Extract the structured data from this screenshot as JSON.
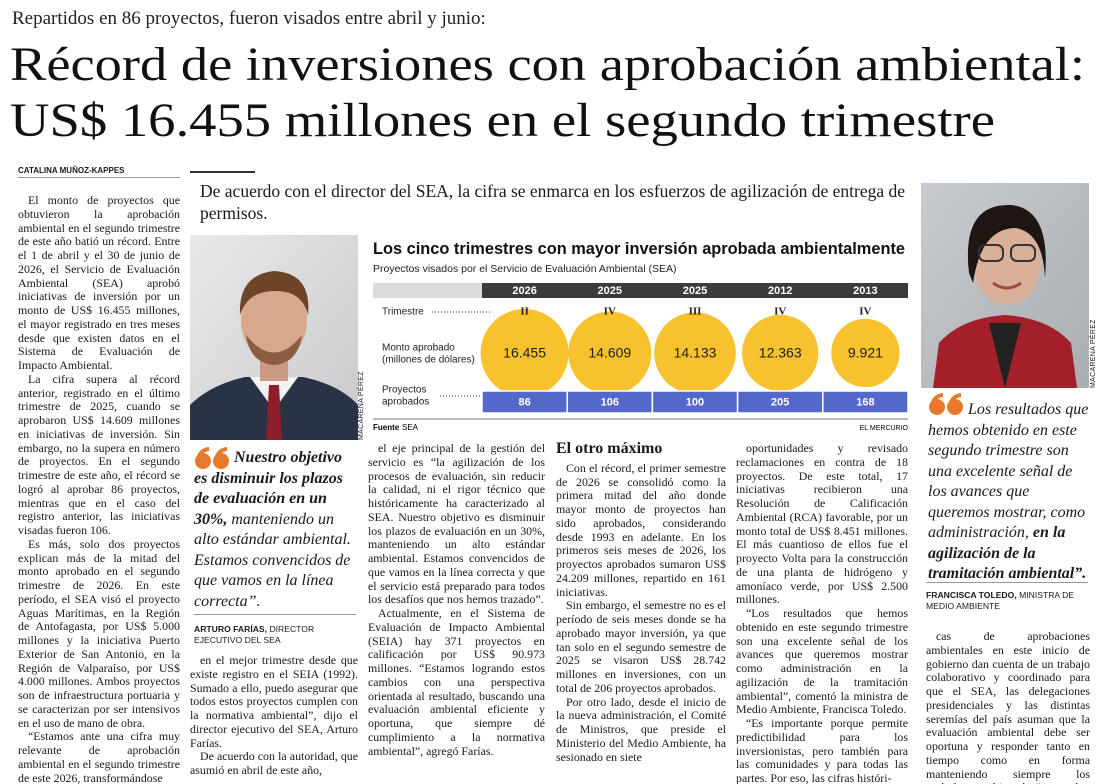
{
  "header": {
    "kicker": "Repartidos en 86 proyectos, fueron visados entre abril y junio:",
    "title_lines": [
      "Récord de inversiones con aprobación ambiental:",
      "US$ 16.455 millones en el segundo trimestre"
    ]
  },
  "byline": "CATALINA MUÑOZ-KAPPES",
  "deck": "De acuerdo con el director del SEA, la cifra se enmarca en los esfuerzos de agilización de entrega de permisos.",
  "photo_credits": [
    "MACARENA PÉREZ",
    "MACARENA PÉREZ"
  ],
  "columns": [
    {
      "paragraphs": [
        "El monto de proyectos que obtuvieron la aprobación ambiental en el segundo trimestre de este año batió un récord. Entre el 1 de abril y el 30 de junio de 2026, el Servicio de Evaluación Ambiental (SEA) aprobó iniciativas de inversión por un monto de US$ 16.455 millones, el mayor registrado en tres meses desde que existen datos en el Sistema de Evaluación de Impacto Ambiental.",
        "La cifra supera al récord anterior, registrado en el último trimestre de 2025, cuando se aprobaron US$ 14.609 millones en iniciativas de inversión. Sin embargo, no la supera en número de proyectos. En el segundo trimestre de este año, el récord se logró al aprobar 86 proyectos, mientras que en el caso del registro anterior, las iniciativas visadas fueron 106.",
        "Es más, solo dos proyectos explican más de la mitad del monto aprobado en el segundo trimestre de 2026. En este período, el SEA visó el proyecto Aguas Marítimas, en la Región de Antofagasta, por US$ 5.000 millones y la iniciativa Puerto Exterior de San Antonio, en la Región de Valparaíso, por US$ 4.000 millones. Ambos proyectos son de infraestructura portuaria y se caracterizan por ser intensivos en el uso de mano de obra.",
        "“Estamos ante una cifra muy relevante de aprobación ambiental en el segundo trimestre de este 2026, transformándose"
      ]
    },
    {
      "paragraphs": [
        "en el mejor trimestre desde que existe registro en el SEIA (1992). Sumado a ello, puedo asegurar que todos estos proyectos cumplen con la normativa ambiental”, dijo el director ejecutivo del SEA, Arturo Farías.",
        "De acuerdo con la autoridad, que asumió en abril de este año,"
      ]
    },
    {
      "paragraphs": [
        "el eje principal de la gestión del servicio es “la agilización de los procesos de evaluación, sin reducir la calidad, ni el rigor técnico que históricamente ha caracterizado al SEA. Nuestro objetivo es disminuir los plazos de evaluación en un 30%, manteniendo un alto estándar ambiental. Estamos convencidos de que vamos en la línea correcta y que el servicio está preparado para todos los desafíos que nos hemos trazado”.",
        "Actualmente, en el Sistema de Evaluación de Impacto Ambiental (SEIA) hay 371 proyectos en calificación por US$ 90.973 millones. “Estamos logrando estos cambios con una perspectiva orientada al resultado, buscando una evaluación ambiental eficiente y oportuna, que siempre dé cumplimiento a la normativa ambiental”, agregó Farías."
      ]
    },
    {
      "heading": "El otro máximo",
      "paragraphs": [
        "Con el récord, el primer semestre de 2026 se consolidó como la primera mitad del año donde mayor monto de proyectos han sido aprobados, considerando desde 1993 en adelante. En los primeros seis meses de 2026, los proyectos aprobados sumaron US$ 24.209 millones, repartido en 161 iniciativas.",
        "Sin embargo, el semestre no es el período de seis meses donde se ha aprobado mayor inversión, ya que tan solo en el segundo semestre de 2025 se visaron US$ 28.742 millones en inversiones, con un total de 206 proyectos aprobados.",
        "Por otro lado, desde el inicio de la nueva administración, el Comité de Ministros, que preside el Ministerio del Medio Ambiente, ha sesionado en siete"
      ]
    },
    {
      "paragraphs": [
        "oportunidades y revisado reclamaciones en contra de 18 proyectos. De este total, 17 iniciativas recibieron una Resolución de Calificación Ambiental (RCA) favorable, por un monto total de US$ 8.451 millones. El más cuantioso de ellos fue el proyecto Volta para la construcción de una planta de hidrógeno y amoníaco verde, por US$ 2.500 millones.",
        "“Los resultados que hemos obtenido en este segundo trimestre son una excelente señal de los avances que queremos mostrar como administración en la agilización de la tramitación ambiental”, comentó la ministra de Medio Ambiente, Francisca Toledo.",
        "“Es importante porque permite predictibilidad para los inversionistas, pero también para las comunidades y para todas las partes. Por eso, las cifras históri-"
      ]
    },
    {
      "paragraphs": [
        "cas de aprobaciones ambientales en este inicio de gobierno dan cuenta de un trabajo colaborativo y coordinado para que el SEA, las delegaciones presidenciales y las distintas seremías del país asuman que la evaluación ambiental debe ser oportuna y responder tanto en tiempo como en forma manteniendo siempre los estándares ambientales”, agregó."
      ]
    }
  ],
  "quotes": [
    {
      "parts": [
        {
          "text": "Nuestro objetivo es disminuir los plazos de evaluación en un 30%,",
          "strong": true
        },
        {
          "text": " manteniendo un alto estándar ambiental. Estamos convencidos de que vamos en la línea correcta”.",
          "strong": false
        }
      ],
      "name": "ARTURO FARÍAS,",
      "role": "DIRECTOR EJECUTIVO DEL SEA"
    },
    {
      "parts": [
        {
          "text": "Los resultados que hemos obtenido en este segundo trimestre son una excelente señal de los avances que queremos mostrar, como administración,",
          "strong": false
        },
        {
          "text": " en la agilización de la tramitación ambiental”.",
          "strong": true
        }
      ],
      "name": "FRANCISCA TOLEDO,",
      "role": "MINISTRA DE MEDIO AMBIENTE"
    }
  ],
  "chart_data": {
    "type": "bubble",
    "title": "Los cinco trimestres con mayor inversión aprobada ambientalmente",
    "subtitle": "Proyectos visados por el Servicio de Evaluación Ambiental (SEA)",
    "row_labels": {
      "quarter": [
        "Trimestre"
      ],
      "amount": [
        "Monto aprobado",
        "(millones de dólares)"
      ],
      "projects": [
        "Proyectos",
        "aprobados"
      ]
    },
    "categories": [
      "2026",
      "2025",
      "2025",
      "2012",
      "2013"
    ],
    "quarters": [
      "II",
      "IV",
      "III",
      "IV",
      "IV"
    ],
    "series": [
      {
        "name": "Monto aprobado",
        "color": "#f8c22e",
        "values": [
          16455,
          14609,
          14133,
          12363,
          9921
        ],
        "value_labels": [
          "16.455",
          "14.609",
          "14.133",
          "12.363",
          "9.921"
        ]
      },
      {
        "name": "Proyectos aprobados",
        "color": "#5468cc",
        "values": [
          86,
          106,
          100,
          205,
          168
        ]
      }
    ],
    "source_label": "Fuente",
    "source": "SEA",
    "credit": "EL MERCURIO"
  }
}
